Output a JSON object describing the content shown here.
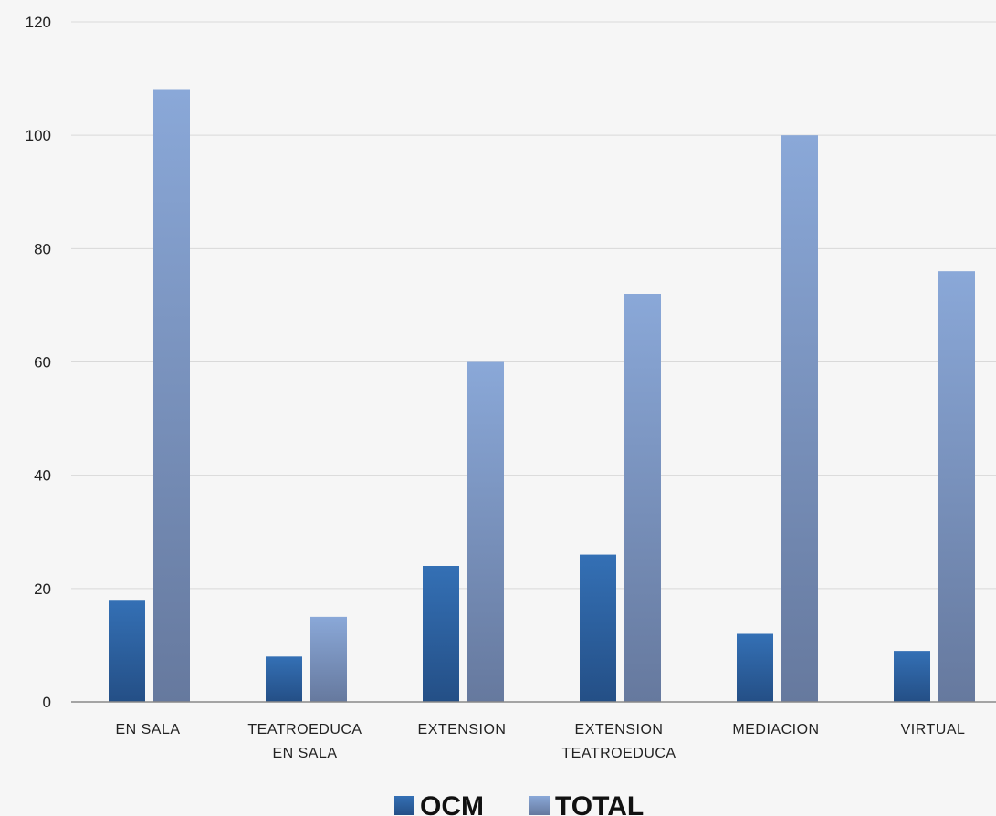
{
  "chart_data": {
    "type": "bar",
    "title": "",
    "xlabel": "",
    "ylabel": "",
    "categories": [
      [
        "EN SALA"
      ],
      [
        "TEATROEDUCA",
        "EN SALA"
      ],
      [
        "EXTENSION"
      ],
      [
        "EXTENSION",
        "TEATROEDUCA"
      ],
      [
        "MEDIACION"
      ],
      [
        "VIRTUAL"
      ]
    ],
    "series": [
      {
        "name": "OCM",
        "values": [
          18,
          8,
          24,
          26,
          12,
          9
        ],
        "color_top": "#3470b5",
        "color_bottom": "#244f86"
      },
      {
        "name": "TOTAL",
        "values": [
          108,
          15,
          60,
          72,
          100,
          76
        ],
        "color_top": "#8aa8d8",
        "color_bottom": "#66799e"
      }
    ],
    "ylim": [
      0,
      120
    ],
    "yticks": [
      0,
      20,
      40,
      60,
      80,
      100,
      120
    ],
    "grid": true,
    "legend_position": "bottom"
  }
}
